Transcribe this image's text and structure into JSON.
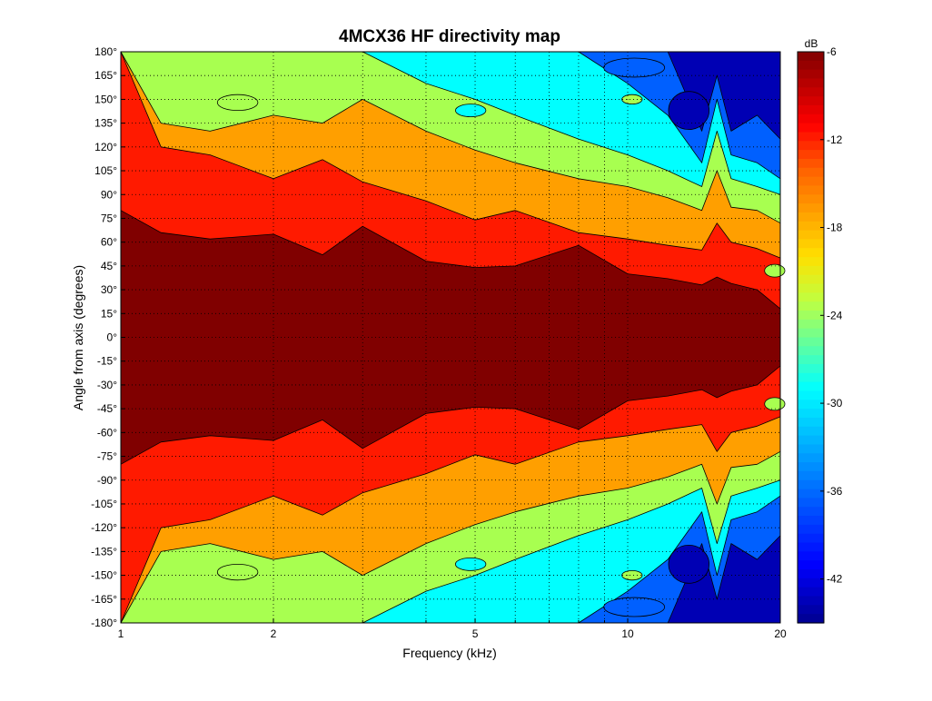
{
  "chart_data": {
    "type": "heatmap",
    "subtype": "filled-contour",
    "title": "4MCX36 HF directivity map",
    "xlabel": "Frequency (kHz)",
    "ylabel": "Angle from axis (degrees)",
    "xscale": "log",
    "xlim": [
      1,
      20
    ],
    "ylim": [
      -180,
      180
    ],
    "x_ticks": [
      1,
      2,
      5,
      10,
      20
    ],
    "x_tick_labels": [
      "1",
      "2",
      "5",
      "10",
      "20"
    ],
    "y_ticks": [
      180,
      165,
      150,
      135,
      120,
      105,
      90,
      75,
      60,
      45,
      30,
      15,
      0,
      -15,
      -30,
      -45,
      -60,
      -75,
      -90,
      -105,
      -120,
      -135,
      -150,
      -165,
      -180
    ],
    "y_tick_labels": [
      "180°",
      "165°",
      "150°",
      "135°",
      "120°",
      "105°",
      "90°",
      "75°",
      "60°",
      "45°",
      "30°",
      "15°",
      "0°",
      "-15°",
      "-30°",
      "-45°",
      "-60°",
      "-75°",
      "-90°",
      "-105°",
      "-120°",
      "-135°",
      "-150°",
      "-165°",
      "-180°"
    ],
    "grid": true,
    "colorbar": {
      "label": "dB",
      "range": [
        -45,
        -6
      ],
      "ticks": [
        -6,
        -12,
        -18,
        -24,
        -30,
        -36,
        -42
      ],
      "tick_labels": [
        "-6",
        "-12",
        "-18",
        "-24",
        "-30",
        "-36",
        "-42"
      ]
    },
    "contour_levels_db": [
      -6,
      -12,
      -18,
      -24,
      -30,
      -36,
      -42
    ],
    "band_colors": {
      "above_-6": "#800000",
      "-6_to_-12": "#ff1a00",
      "-12_to_-18": "#ff9f00",
      "-18_to_-24": "#a8ff50",
      "-24_to_-30": "#00ffff",
      "-30_to_-36": "#0060ff",
      "below_-36": "#0000b4"
    },
    "boundaries_deg": {
      "freq_khz": [
        1,
        1.2,
        1.5,
        2,
        2.5,
        3,
        4,
        5,
        6,
        8,
        10,
        12,
        14,
        15,
        16,
        18,
        20
      ],
      "minus_6db": [
        80,
        66,
        62,
        65,
        52,
        70,
        48,
        44,
        45,
        58,
        40,
        37,
        33,
        38,
        34,
        30,
        18
      ],
      "minus_12db": [
        180,
        120,
        115,
        100,
        112,
        98,
        86,
        74,
        80,
        66,
        62,
        58,
        55,
        72,
        60,
        56,
        50
      ],
      "minus_18db": [
        180,
        135,
        130,
        140,
        135,
        150,
        130,
        118,
        110,
        100,
        95,
        88,
        80,
        105,
        82,
        80,
        72
      ],
      "minus_24db": [
        180,
        180,
        180,
        180,
        180,
        180,
        160,
        150,
        140,
        125,
        115,
        105,
        95,
        130,
        100,
        95,
        90
      ],
      "minus_30db": [
        180,
        180,
        180,
        180,
        180,
        180,
        180,
        180,
        180,
        180,
        160,
        140,
        110,
        150,
        115,
        110,
        100
      ],
      "minus_36db": [
        180,
        180,
        180,
        180,
        180,
        180,
        180,
        180,
        180,
        180,
        180,
        180,
        130,
        165,
        130,
        140,
        125
      ]
    },
    "pockets": [
      {
        "band": "-18_to_-24",
        "f": 1.7,
        "deg": 148,
        "rx": 0.04,
        "ry": 5
      },
      {
        "band": "-18_to_-24",
        "f": 1.7,
        "deg": -148,
        "rx": 0.04,
        "ry": 5
      },
      {
        "band": "-24_to_-30",
        "f": 4.9,
        "deg": 143,
        "rx": 0.03,
        "ry": 4
      },
      {
        "band": "-24_to_-30",
        "f": 4.9,
        "deg": -143,
        "rx": 0.03,
        "ry": 4
      },
      {
        "band": "-30_to_-36",
        "f": 10.3,
        "deg": 170,
        "rx": 0.06,
        "ry": 6
      },
      {
        "band": "-30_to_-36",
        "f": 10.3,
        "deg": -170,
        "rx": 0.06,
        "ry": 6
      },
      {
        "band": "below_-36",
        "f": 13.2,
        "deg": 143,
        "rx": 0.04,
        "ry": 12
      },
      {
        "band": "below_-36",
        "f": 13.2,
        "deg": -143,
        "rx": 0.04,
        "ry": 12
      },
      {
        "band": "-18_to_-24",
        "f": 19.5,
        "deg": 42,
        "rx": 0.02,
        "ry": 4
      },
      {
        "band": "-18_to_-24",
        "f": 19.5,
        "deg": -42,
        "rx": 0.02,
        "ry": 4
      },
      {
        "band": "-18_to_-24",
        "f": 10.2,
        "deg": 150,
        "rx": 0.02,
        "ry": 3
      },
      {
        "band": "-18_to_-24",
        "f": 10.2,
        "deg": -150,
        "rx": 0.02,
        "ry": 3
      }
    ]
  }
}
